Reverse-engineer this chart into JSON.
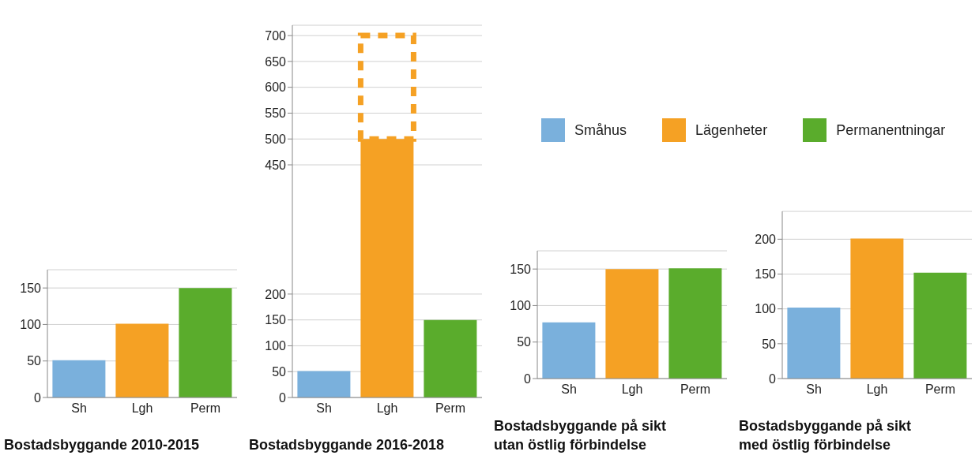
{
  "chart_data": [
    {
      "type": "bar",
      "title": "Bostadsbyggande 2010-2015",
      "categories": [
        "Sh",
        "Lgh",
        "Perm"
      ],
      "stacked": true,
      "grid": "y",
      "ylim": [
        0,
        175
      ],
      "yticks": [
        0,
        50,
        100,
        150
      ],
      "series": [
        {
          "color": "#7ab0dc",
          "values": [
            51,
            null,
            null
          ]
        },
        {
          "color": "#f5a124",
          "values": [
            null,
            101,
            null
          ]
        },
        {
          "color": "#5aac2c",
          "values": [
            null,
            null,
            150
          ]
        }
      ]
    },
    {
      "type": "bar",
      "title": "Bostadsbyggande 2016-2018",
      "categories": [
        "Sh",
        "Lgh",
        "Perm"
      ],
      "stacked": true,
      "grid": "y",
      "ylim": [
        0,
        720
      ],
      "yticks": [
        0,
        50,
        100,
        150,
        200,
        450,
        500,
        550,
        600,
        650,
        700
      ],
      "series": [
        {
          "color": "#7ab0dc",
          "values": [
            51,
            null,
            null
          ]
        },
        {
          "color": "#f5a124",
          "values": [
            null,
            500,
            null
          ]
        },
        {
          "color": "#5aac2c",
          "values": [
            null,
            null,
            150
          ]
        },
        {
          "color": "#f5a124",
          "line_style": "dashed",
          "values": [
            null,
            200,
            null
          ]
        }
      ]
    },
    {
      "type": "bar",
      "title": "Bostadsbyggande på sikt utan östlig förbindelse",
      "categories": [
        "Sh",
        "Lgh",
        "Perm"
      ],
      "stacked": true,
      "grid": "y",
      "legend": "top right",
      "ylim": [
        0,
        175
      ],
      "yticks": [
        0,
        50,
        100,
        150
      ],
      "series": [
        {
          "name": "Småhus",
          "color": "#7ab0dc",
          "values": [
            77,
            null,
            null
          ]
        },
        {
          "name": "Lägenheter",
          "color": "#f5a124",
          "values": [
            null,
            150,
            null
          ]
        },
        {
          "name": "Permanentningar",
          "color": "#5aac2c",
          "values": [
            null,
            null,
            151
          ]
        }
      ]
    },
    {
      "type": "bar",
      "title": "Bostadsbyggande på sikt med östlig förbindelse",
      "categories": [
        "Sh",
        "Lgh",
        "Perm"
      ],
      "stacked": true,
      "grid": "y",
      "ylim": [
        0,
        240
      ],
      "yticks": [
        0,
        50,
        100,
        150,
        200
      ],
      "series": [
        {
          "color": "#7ab0dc",
          "values": [
            102,
            null,
            null
          ]
        },
        {
          "color": "#f5a124",
          "values": [
            null,
            201,
            null
          ]
        },
        {
          "color": "#5aac2c",
          "values": [
            null,
            null,
            152
          ]
        }
      ]
    }
  ]
}
